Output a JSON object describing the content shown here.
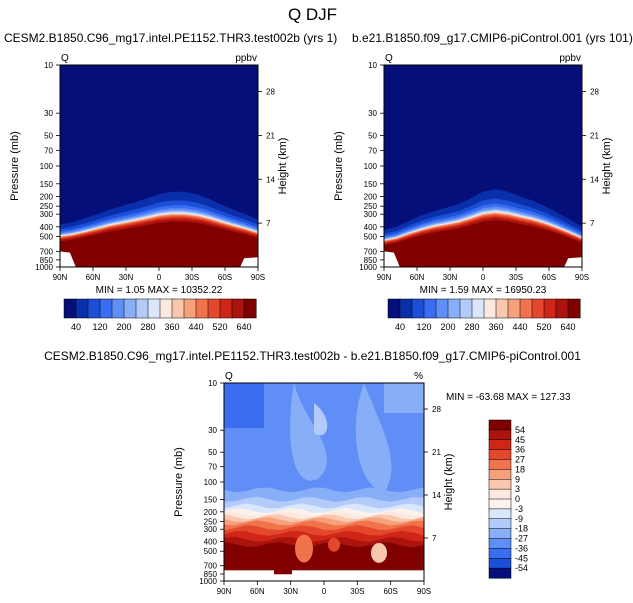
{
  "figure_title": "Q DJF",
  "chart_data": [
    {
      "type": "heatmap",
      "title": "CESM2.B1850.C96_mg17.intel.PE1152.THR3.test002b (yrs 1)",
      "left_label": "Q",
      "right_label": "ppbv",
      "ylabel": "Pressure (mb)",
      "ylabel_right": "Height (km)",
      "x_ticks": [
        "90N",
        "60N",
        "30N",
        "0",
        "30S",
        "60S",
        "90S"
      ],
      "y_ticks": [
        "10",
        "30",
        "50",
        "70",
        "100",
        "150",
        "200",
        "250",
        "300",
        "400",
        "500",
        "700",
        "850",
        "1000"
      ],
      "y_ticks_right": [
        "28",
        "21",
        "14",
        "7"
      ],
      "min_text": "MIN =  1.05   MAX = 10352.22",
      "colorbar_labels": [
        "40",
        "120",
        "200",
        "280",
        "360",
        "440",
        "520",
        "640"
      ],
      "top_boundary_mb": [
        500,
        480,
        450,
        420,
        390,
        370,
        350,
        330,
        310,
        300,
        300,
        310,
        330,
        360,
        390,
        420,
        460
      ],
      "colors": [
        "#050f7a",
        "#0a2faa",
        "#1c4fd8",
        "#3a6ef2",
        "#5f8ff6",
        "#89aef8",
        "#b2cbfa",
        "#d9e6fb",
        "#fbe9df",
        "#f9c6ae",
        "#f6a07c",
        "#f0734b",
        "#e4482c",
        "#cf2617",
        "#ad130d",
        "#800000"
      ]
    },
    {
      "type": "heatmap",
      "title": "b.e21.B1850.f09_g17.CMIP6-piControl.001 (yrs 101)",
      "left_label": "Q",
      "right_label": "ppbv",
      "ylabel": "Pressure (mb)",
      "ylabel_right": "Height (km)",
      "x_ticks": [
        "90N",
        "60N",
        "30N",
        "0",
        "30S",
        "60S",
        "90S"
      ],
      "y_ticks": [
        "10",
        "30",
        "50",
        "70",
        "100",
        "150",
        "200",
        "250",
        "300",
        "400",
        "500",
        "700",
        "850",
        "1000"
      ],
      "y_ticks_right": [
        "28",
        "21",
        "14",
        "7"
      ],
      "min_text": "MIN =  1.59   MAX = 16950.23",
      "colorbar_labels": [
        "40",
        "120",
        "200",
        "280",
        "360",
        "440",
        "520",
        "640"
      ],
      "top_boundary_mb": [
        550,
        520,
        470,
        430,
        400,
        380,
        360,
        330,
        300,
        290,
        300,
        320,
        340,
        370,
        410,
        460,
        520
      ],
      "colors": [
        "#050f7a",
        "#0a2faa",
        "#1c4fd8",
        "#3a6ef2",
        "#5f8ff6",
        "#89aef8",
        "#b2cbfa",
        "#d9e6fb",
        "#fbe9df",
        "#f9c6ae",
        "#f6a07c",
        "#f0734b",
        "#e4482c",
        "#cf2617",
        "#ad130d",
        "#800000"
      ]
    },
    {
      "type": "heatmap",
      "title": "CESM2.B1850.C96_mg17.intel.PE1152.THR3.test002b - b.e21.B1850.f09_g17.CMIP6-piControl.001",
      "left_label": "Q",
      "right_label": "%",
      "ylabel": "Pressure (mb)",
      "ylabel_right": "Height (km)",
      "x_ticks": [
        "90N",
        "60N",
        "30N",
        "0",
        "30S",
        "60S",
        "90S"
      ],
      "y_ticks": [
        "10",
        "30",
        "50",
        "70",
        "100",
        "150",
        "200",
        "250",
        "300",
        "400",
        "500",
        "700",
        "850",
        "1000"
      ],
      "y_ticks_right": [
        "28",
        "21",
        "14",
        "7"
      ],
      "min_text": "MIN = -63.68   MAX = 127.33",
      "colorbar_labels": [
        "54",
        "45",
        "36",
        "27",
        "18",
        "9",
        "3",
        "0",
        "-3",
        "-9",
        "-18",
        "-27",
        "-36",
        "-45",
        "-54"
      ],
      "colors": [
        "#800000",
        "#ad130d",
        "#cf2617",
        "#e4482c",
        "#f0734b",
        "#f6a07c",
        "#f9c6ae",
        "#fbe9df",
        "#fbf2ec",
        "#d9e6fb",
        "#b2cbfa",
        "#89aef8",
        "#5f8ff6",
        "#3a6ef2",
        "#1c4fd8",
        "#050f7a"
      ]
    }
  ]
}
